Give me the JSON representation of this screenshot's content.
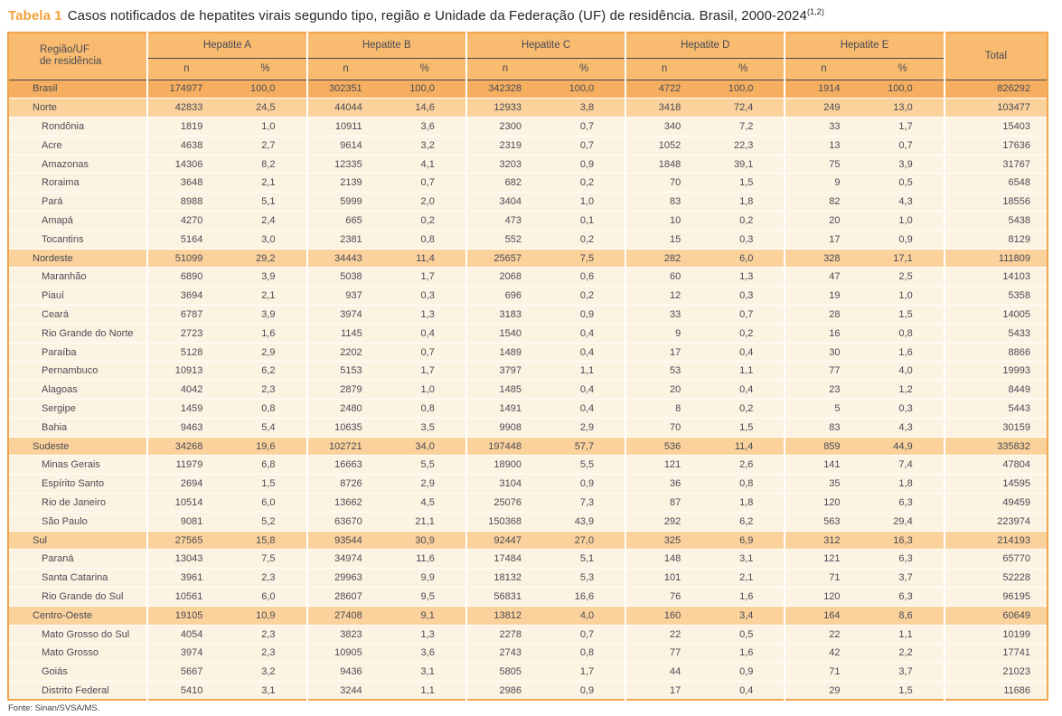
{
  "title": {
    "label": "Tabela 1",
    "text": "Casos notificados de hepatites virais segundo tipo, região e Unidade da Federação (UF) de residência. Brasil, 2000-2024",
    "superscript": "(1,2)"
  },
  "footer": {
    "source": "Fonte: Sinan/SVSA/MS."
  },
  "colors": {
    "title_accent": "#f2a13b",
    "table_border": "#f2a44e",
    "header_bg": "#f8bb70",
    "brasil_row_bg": "#f6af60",
    "region_row_bg": "#fbd29c",
    "state_row_bg": "#fdf3e2",
    "rule": "#45454f",
    "text": "#4a4b55"
  },
  "table": {
    "row_header": [
      "Região/UF",
      "de residência"
    ],
    "groups": [
      {
        "label": "Hepatite A"
      },
      {
        "label": "Hepatite B"
      },
      {
        "label": "Hepatite C"
      },
      {
        "label": "Hepatite D"
      },
      {
        "label": "Hepatite E"
      }
    ],
    "subheaders": [
      "n",
      "%"
    ],
    "total_label": "Total",
    "rows": [
      {
        "name": "Brasil",
        "type": "brasil",
        "values": [
          "174977",
          "100,0",
          "302351",
          "100,0",
          "342328",
          "100,0",
          "4722",
          "100,0",
          "1914",
          "100,0",
          "826292"
        ]
      },
      {
        "name": "Norte",
        "type": "region",
        "values": [
          "42833",
          "24,5",
          "44044",
          "14,6",
          "12933",
          "3,8",
          "3418",
          "72,4",
          "249",
          "13,0",
          "103477"
        ]
      },
      {
        "name": "Rondônia",
        "type": "state",
        "values": [
          "1819",
          "1,0",
          "10911",
          "3,6",
          "2300",
          "0,7",
          "340",
          "7,2",
          "33",
          "1,7",
          "15403"
        ]
      },
      {
        "name": "Acre",
        "type": "state",
        "values": [
          "4638",
          "2,7",
          "9614",
          "3,2",
          "2319",
          "0,7",
          "1052",
          "22,3",
          "13",
          "0,7",
          "17636"
        ]
      },
      {
        "name": "Amazonas",
        "type": "state",
        "values": [
          "14306",
          "8,2",
          "12335",
          "4,1",
          "3203",
          "0,9",
          "1848",
          "39,1",
          "75",
          "3,9",
          "31767"
        ]
      },
      {
        "name": "Roraima",
        "type": "state",
        "values": [
          "3648",
          "2,1",
          "2139",
          "0,7",
          "682",
          "0,2",
          "70",
          "1,5",
          "9",
          "0,5",
          "6548"
        ]
      },
      {
        "name": "Pará",
        "type": "state",
        "values": [
          "8988",
          "5,1",
          "5999",
          "2,0",
          "3404",
          "1,0",
          "83",
          "1,8",
          "82",
          "4,3",
          "18556"
        ]
      },
      {
        "name": "Amapá",
        "type": "state",
        "values": [
          "4270",
          "2,4",
          "665",
          "0,2",
          "473",
          "0,1",
          "10",
          "0,2",
          "20",
          "1,0",
          "5438"
        ]
      },
      {
        "name": "Tocantins",
        "type": "state",
        "values": [
          "5164",
          "3,0",
          "2381",
          "0,8",
          "552",
          "0,2",
          "15",
          "0,3",
          "17",
          "0,9",
          "8129"
        ]
      },
      {
        "name": "Nordeste",
        "type": "region",
        "values": [
          "51099",
          "29,2",
          "34443",
          "11,4",
          "25657",
          "7,5",
          "282",
          "6,0",
          "328",
          "17,1",
          "111809"
        ]
      },
      {
        "name": "Maranhão",
        "type": "state",
        "values": [
          "6890",
          "3,9",
          "5038",
          "1,7",
          "2068",
          "0,6",
          "60",
          "1,3",
          "47",
          "2,5",
          "14103"
        ]
      },
      {
        "name": "Piauí",
        "type": "state",
        "values": [
          "3694",
          "2,1",
          "937",
          "0,3",
          "696",
          "0,2",
          "12",
          "0,3",
          "19",
          "1,0",
          "5358"
        ]
      },
      {
        "name": "Ceará",
        "type": "state",
        "values": [
          "6787",
          "3,9",
          "3974",
          "1,3",
          "3183",
          "0,9",
          "33",
          "0,7",
          "28",
          "1,5",
          "14005"
        ]
      },
      {
        "name": "Rio Grande do Norte",
        "type": "state",
        "values": [
          "2723",
          "1,6",
          "1145",
          "0,4",
          "1540",
          "0,4",
          "9",
          "0,2",
          "16",
          "0,8",
          "5433"
        ]
      },
      {
        "name": "Paraíba",
        "type": "state",
        "values": [
          "5128",
          "2,9",
          "2202",
          "0,7",
          "1489",
          "0,4",
          "17",
          "0,4",
          "30",
          "1,6",
          "8866"
        ]
      },
      {
        "name": "Pernambuco",
        "type": "state",
        "values": [
          "10913",
          "6,2",
          "5153",
          "1,7",
          "3797",
          "1,1",
          "53",
          "1,1",
          "77",
          "4,0",
          "19993"
        ]
      },
      {
        "name": "Alagoas",
        "type": "state",
        "values": [
          "4042",
          "2,3",
          "2879",
          "1,0",
          "1485",
          "0,4",
          "20",
          "0,4",
          "23",
          "1,2",
          "8449"
        ]
      },
      {
        "name": "Sergipe",
        "type": "state",
        "values": [
          "1459",
          "0,8",
          "2480",
          "0,8",
          "1491",
          "0,4",
          "8",
          "0,2",
          "5",
          "0,3",
          "5443"
        ]
      },
      {
        "name": "Bahia",
        "type": "state",
        "values": [
          "9463",
          "5,4",
          "10635",
          "3,5",
          "9908",
          "2,9",
          "70",
          "1,5",
          "83",
          "4,3",
          "30159"
        ]
      },
      {
        "name": "Sudeste",
        "type": "region",
        "values": [
          "34268",
          "19,6",
          "102721",
          "34,0",
          "197448",
          "57,7",
          "536",
          "11,4",
          "859",
          "44,9",
          "335832"
        ]
      },
      {
        "name": "Minas Gerais",
        "type": "state",
        "values": [
          "11979",
          "6,8",
          "16663",
          "5,5",
          "18900",
          "5,5",
          "121",
          "2,6",
          "141",
          "7,4",
          "47804"
        ]
      },
      {
        "name": "Espírito Santo",
        "type": "state",
        "values": [
          "2694",
          "1,5",
          "8726",
          "2,9",
          "3104",
          "0,9",
          "36",
          "0,8",
          "35",
          "1,8",
          "14595"
        ]
      },
      {
        "name": "Rio de Janeiro",
        "type": "state",
        "values": [
          "10514",
          "6,0",
          "13662",
          "4,5",
          "25076",
          "7,3",
          "87",
          "1,8",
          "120",
          "6,3",
          "49459"
        ]
      },
      {
        "name": "São Paulo",
        "type": "state",
        "values": [
          "9081",
          "5,2",
          "63670",
          "21,1",
          "150368",
          "43,9",
          "292",
          "6,2",
          "563",
          "29,4",
          "223974"
        ]
      },
      {
        "name": "Sul",
        "type": "region",
        "values": [
          "27565",
          "15,8",
          "93544",
          "30,9",
          "92447",
          "27,0",
          "325",
          "6,9",
          "312",
          "16,3",
          "214193"
        ]
      },
      {
        "name": "Paraná",
        "type": "state",
        "values": [
          "13043",
          "7,5",
          "34974",
          "11,6",
          "17484",
          "5,1",
          "148",
          "3,1",
          "121",
          "6,3",
          "65770"
        ]
      },
      {
        "name": "Santa Catarina",
        "type": "state",
        "values": [
          "3961",
          "2,3",
          "29963",
          "9,9",
          "18132",
          "5,3",
          "101",
          "2,1",
          "71",
          "3,7",
          "52228"
        ]
      },
      {
        "name": "Rio Grande do Sul",
        "type": "state",
        "values": [
          "10561",
          "6,0",
          "28607",
          "9,5",
          "56831",
          "16,6",
          "76",
          "1,6",
          "120",
          "6,3",
          "96195"
        ]
      },
      {
        "name": "Centro-Oeste",
        "type": "region",
        "values": [
          "19105",
          "10,9",
          "27408",
          "9,1",
          "13812",
          "4,0",
          "160",
          "3,4",
          "164",
          "8,6",
          "60649"
        ]
      },
      {
        "name": "Mato Grosso do Sul",
        "type": "state",
        "values": [
          "4054",
          "2,3",
          "3823",
          "1,3",
          "2278",
          "0,7",
          "22",
          "0,5",
          "22",
          "1,1",
          "10199"
        ]
      },
      {
        "name": "Mato Grosso",
        "type": "state",
        "values": [
          "3974",
          "2,3",
          "10905",
          "3,6",
          "2743",
          "0,8",
          "77",
          "1,6",
          "42",
          "2,2",
          "17741"
        ]
      },
      {
        "name": "Goiás",
        "type": "state",
        "values": [
          "5667",
          "3,2",
          "9436",
          "3,1",
          "5805",
          "1,7",
          "44",
          "0,9",
          "71",
          "3,7",
          "21023"
        ]
      },
      {
        "name": "Distrito Federal",
        "type": "state",
        "values": [
          "5410",
          "3,1",
          "3244",
          "1,1",
          "2986",
          "0,9",
          "17",
          "0,4",
          "29",
          "1,5",
          "11686"
        ]
      }
    ]
  }
}
